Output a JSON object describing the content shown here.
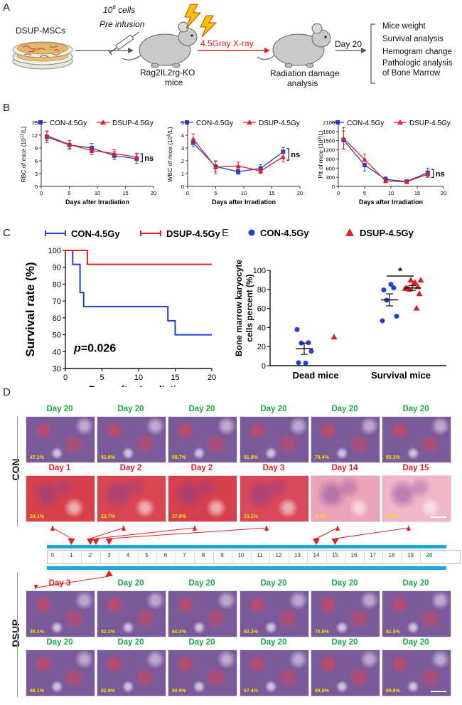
{
  "panel_letters": {
    "a": "A",
    "b": "B",
    "c": "C",
    "d": "D",
    "e": "E"
  },
  "panelA": {
    "cells_label": "DSUP-MSCs",
    "infusion_sup": "6",
    "infusion_line1_prefix": "10",
    "infusion_line1_suffix": " cells",
    "infusion_line2": "Pre infusion",
    "mouse_label_1": "Rag2IL2rg-KO",
    "mouse_label_2": "mice",
    "xray_label": "4.5Gray X-ray",
    "damage_label_1": "Radiation damage",
    "damage_label_2": "analysis",
    "day_label": "Day 20",
    "outcomes": [
      "Mice weight",
      "Survival analysis",
      "Hemogram change",
      "Pathologic analysis",
      "of Bone Marrow"
    ],
    "colors": {
      "arrow_red": "#e02020",
      "arrow_grey": "#555555",
      "bolt": "#f5c400",
      "bolt_stroke": "#e03a00"
    }
  },
  "legend": {
    "con": "CON-4.5Gy",
    "dsup": "DSUP-4.5Gy"
  },
  "colors": {
    "con": "#1f3fd6",
    "dsup": "#e02020",
    "day20": "#1aa84a",
    "dayearly": "#e02020",
    "timeline": "#1aa7e0"
  },
  "chart_data": [
    {
      "id": "rbc",
      "type": "line",
      "title": "",
      "xlabel": "Days after Irradiation",
      "ylabel": "RBC of mice (10¹²/L)",
      "ylabel_main": "RBC of mice (10",
      "ylabel_sup": "12",
      "ylabel_tail": "/L)",
      "xlim": [
        0,
        20
      ],
      "ylim": [
        0,
        15
      ],
      "xticks": [
        "0",
        "5",
        "10",
        "15",
        "20"
      ],
      "yticks": [
        "0",
        "3",
        "6",
        "9",
        "12",
        "15"
      ],
      "annotation": "ns",
      "series": [
        {
          "name": "CON-4.5Gy",
          "x": [
            1,
            5,
            9,
            13,
            17
          ],
          "y": [
            11.6,
            9.7,
            9.0,
            7.2,
            6.5
          ],
          "err": [
            1.3,
            1.0,
            1.1,
            0.9,
            1.1
          ]
        },
        {
          "name": "DSUP-4.5Gy",
          "x": [
            1,
            5,
            9,
            13,
            17
          ],
          "y": [
            11.9,
            9.8,
            8.4,
            7.7,
            6.9
          ],
          "err": [
            1.1,
            0.9,
            1.0,
            0.9,
            0.9
          ]
        }
      ]
    },
    {
      "id": "wbc",
      "type": "line",
      "title": "",
      "xlabel": "Days after Irradiation",
      "ylabel": "WBC of mice (10⁹/L)",
      "ylabel_main": "WBC of mice (10",
      "ylabel_sup": "9",
      "ylabel_tail": "/L)",
      "xlim": [
        0,
        20
      ],
      "ylim": [
        0,
        5
      ],
      "xticks": [
        "0",
        "5",
        "10",
        "15",
        "20"
      ],
      "yticks": [
        "0",
        "1",
        "2",
        "3",
        "4",
        "5"
      ],
      "annotation": "ns",
      "series": [
        {
          "name": "CON-4.5Gy",
          "x": [
            1,
            5,
            9,
            13,
            17
          ],
          "y": [
            3.4,
            1.55,
            1.15,
            1.4,
            2.7
          ],
          "err": [
            0.3,
            0.4,
            0.2,
            0.3,
            0.35
          ]
        },
        {
          "name": "DSUP-4.5Gy",
          "x": [
            1,
            5,
            9,
            13,
            17
          ],
          "y": [
            3.7,
            1.5,
            1.6,
            1.2,
            2.3
          ],
          "err": [
            0.4,
            0.5,
            0.3,
            0.2,
            0.4
          ]
        }
      ]
    },
    {
      "id": "plt",
      "type": "line",
      "title": "",
      "xlabel": "Days after Irradiation",
      "ylabel": "Plt of mice (10⁹/L)",
      "ylabel_main": "Plt of mice (10",
      "ylabel_sup": "9",
      "ylabel_tail": "/L)",
      "xlim": [
        0,
        20
      ],
      "ylim": [
        0,
        2100
      ],
      "xticks": [
        "0",
        "5",
        "10",
        "15",
        "20"
      ],
      "yticks": [
        "0",
        "300",
        "600",
        "900",
        "1200",
        "1500",
        "1800",
        "2100"
      ],
      "annotation": "ns",
      "series": [
        {
          "name": "CON-4.5Gy",
          "x": [
            1,
            5,
            9,
            13,
            17
          ],
          "y": [
            1520,
            700,
            230,
            160,
            450
          ],
          "err": [
            300,
            200,
            80,
            50,
            150
          ]
        },
        {
          "name": "DSUP-4.5Gy",
          "x": [
            1,
            5,
            9,
            13,
            17
          ],
          "y": [
            1580,
            880,
            180,
            150,
            400
          ],
          "err": [
            350,
            180,
            60,
            40,
            100
          ]
        }
      ]
    },
    {
      "id": "survival",
      "type": "line",
      "title": "",
      "xlabel": "Days after Irradiation",
      "ylabel": "Survival rate (%)",
      "xlim": [
        0,
        20
      ],
      "ylim": [
        30,
        100
      ],
      "xticks": [
        "0",
        "5",
        "10",
        "15",
        "20"
      ],
      "yticks": [
        "30",
        "40",
        "50",
        "60",
        "70",
        "80",
        "90",
        "100"
      ],
      "annotation_p": "p",
      "annotation_val": "=0.026",
      "series": [
        {
          "name": "CON-4.5Gy",
          "steps": [
            [
              0,
              100
            ],
            [
              1,
              100
            ],
            [
              1,
              91.7
            ],
            [
              2,
              91.7
            ],
            [
              2,
              75
            ],
            [
              2.5,
              75
            ],
            [
              2.5,
              66.7
            ],
            [
              14,
              66.7
            ],
            [
              14,
              58.3
            ],
            [
              15,
              58.3
            ],
            [
              15,
              50
            ],
            [
              20,
              50
            ]
          ]
        },
        {
          "name": "DSUP-4.5Gy",
          "steps": [
            [
              0,
              100
            ],
            [
              3,
              100
            ],
            [
              3,
              91.7
            ],
            [
              20,
              91.7
            ]
          ]
        }
      ]
    },
    {
      "id": "bonemarrow",
      "type": "scatter",
      "title": "",
      "xlabel": "",
      "ylabel": "Bone marrow karyocyte cells percent (%)",
      "ylabel_line1": "Bone marrow karyocyte",
      "ylabel_line2": "cells percent (%)",
      "categories": [
        "Dead mice",
        "Survival mice"
      ],
      "ylim": [
        0,
        100
      ],
      "yticks": [
        "0",
        "20",
        "40",
        "60",
        "80",
        "100"
      ],
      "annotation": "*",
      "series": [
        {
          "name": "CON-4.5Gy",
          "groups": [
            [
              37.9,
              24.1,
              23.7,
              15.1,
              3.1,
              2.7
            ],
            [
              47.1,
              81.6,
              68.7,
              51.9,
              79.4,
              85.3
            ]
          ],
          "means": [
            17.8,
            69.0
          ],
          "sem": [
            5.9,
            6.3
          ]
        },
        {
          "name": "DSUP-4.5Gy",
          "groups": [
            [
              30.1
            ],
            [
              81.1,
              60.4,
              80.2,
              75.6,
              81.5,
              86.1,
              82.9,
              80.9,
              87.4,
              89.8,
              89.8
            ]
          ],
          "means": [
            30.1,
            81.5
          ],
          "sem": [
            0,
            2.5
          ]
        }
      ]
    }
  ],
  "panelD": {
    "con_label": "CON",
    "dsup_label": "DSUP",
    "con_row1": [
      {
        "day": "Day 20",
        "pct": "47.1%"
      },
      {
        "day": "Day 20",
        "pct": "81.6%"
      },
      {
        "day": "Day 20",
        "pct": "68.7%"
      },
      {
        "day": "Day 20",
        "pct": "51.9%"
      },
      {
        "day": "Day 20",
        "pct": "79.4%"
      },
      {
        "day": "Day 20",
        "pct": "85.3%"
      }
    ],
    "con_row2": [
      {
        "day": "Day 1",
        "pct": "24.1%"
      },
      {
        "day": "Day 2",
        "pct": "23.7%"
      },
      {
        "day": "Day 2",
        "pct": "37.9%"
      },
      {
        "day": "Day 3",
        "pct": "15.1%"
      },
      {
        "day": "Day 14",
        "pct": "3.1%"
      },
      {
        "day": "Day 15",
        "pct": "2.7%"
      }
    ],
    "dsup_row1": [
      {
        "day": "Day 3",
        "pct": "30.1%"
      },
      {
        "day": "Day 20",
        "pct": "81.1%"
      },
      {
        "day": "Day 20",
        "pct": "60.4%"
      },
      {
        "day": "Day 20",
        "pct": "80.2%"
      },
      {
        "day": "Day 20",
        "pct": "75.6%"
      },
      {
        "day": "Day 20",
        "pct": "81.5%"
      }
    ],
    "dsup_row2": [
      {
        "day": "Day 20",
        "pct": "86.1%"
      },
      {
        "day": "Day 20",
        "pct": "82.9%"
      },
      {
        "day": "Day 20",
        "pct": "80.9%"
      },
      {
        "day": "Day 20",
        "pct": "87.4%"
      },
      {
        "day": "Day 20",
        "pct": "89.8%"
      },
      {
        "day": "Day 20",
        "pct": "89.8%"
      }
    ],
    "timeline_ticks": [
      "0",
      "1",
      "2",
      "3",
      "4",
      "5",
      "6",
      "7",
      "8",
      "9",
      "10",
      "11",
      "12",
      "13",
      "14",
      "15",
      "16",
      "17",
      "18",
      "19",
      "20"
    ]
  }
}
